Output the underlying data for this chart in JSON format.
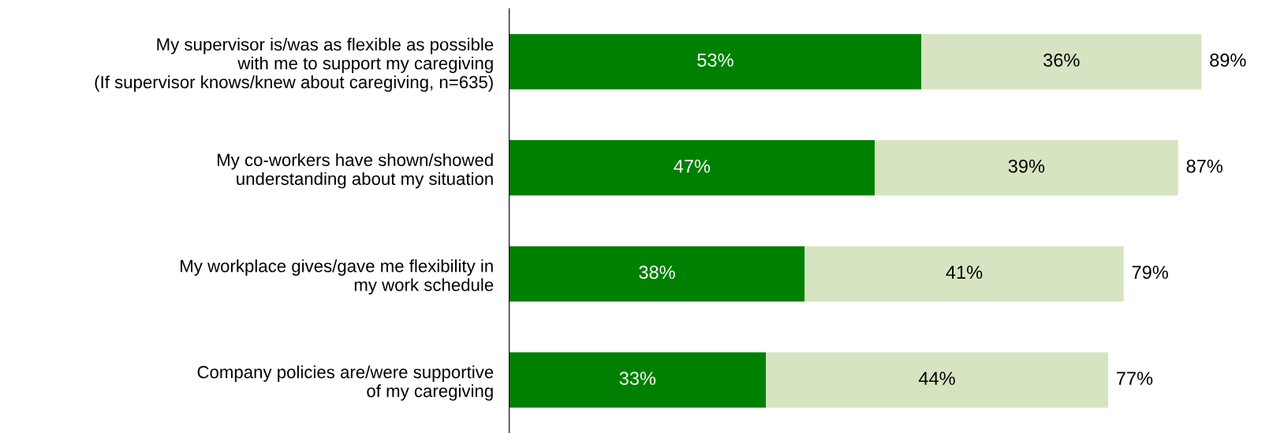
{
  "chart_data": {
    "type": "bar",
    "orientation": "horizontal",
    "stacked": true,
    "categories": [
      "My supervisor is/was as flexible as possible\nwith me to support my caregiving\n(If supervisor knows/knew about caregiving, n=635)",
      "My co-workers have shown/showed\nunderstanding about my situation",
      "My workplace gives/gave me flexibility in\nmy work schedule",
      "Company policies are/were supportive\nof my caregiving"
    ],
    "series": [
      {
        "color": "#008000",
        "values": [
          53,
          47,
          38,
          33
        ],
        "value_labels": [
          "53%",
          "47%",
          "38%",
          "33%"
        ]
      },
      {
        "color": "#d7e4c2",
        "values": [
          36,
          39,
          41,
          44
        ],
        "value_labels": [
          "36%",
          "39%",
          "41%",
          "44%"
        ]
      }
    ],
    "totals": [
      "89%",
      "87%",
      "79%",
      "77%"
    ],
    "grid": false,
    "legend": false
  }
}
